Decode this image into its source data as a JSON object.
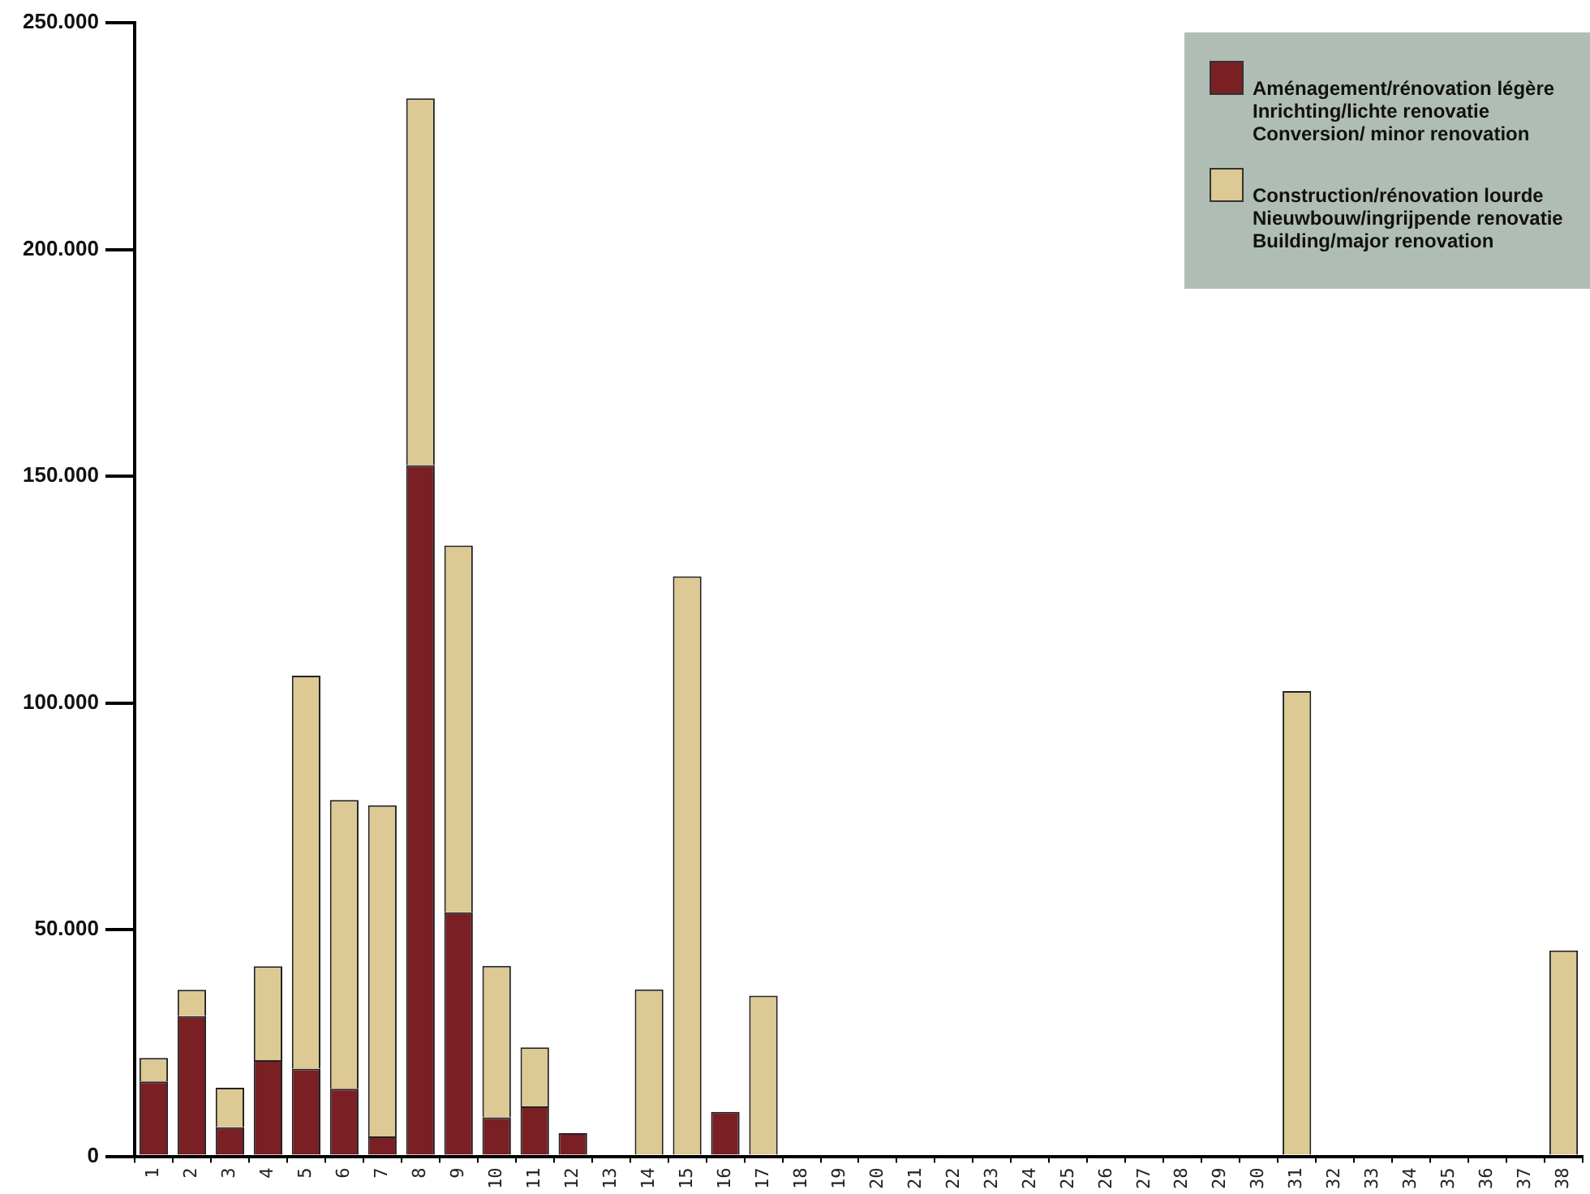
{
  "chart_data": {
    "type": "bar",
    "stacked": true,
    "categories": [
      "1",
      "2",
      "3",
      "4",
      "5",
      "6",
      "7",
      "8",
      "9",
      "10",
      "11",
      "12",
      "13",
      "14",
      "15",
      "16",
      "17",
      "18",
      "19",
      "20",
      "21",
      "22",
      "23",
      "24",
      "25",
      "26",
      "27",
      "28",
      "29",
      "30",
      "31",
      "32",
      "33",
      "34",
      "35",
      "36",
      "37",
      "38"
    ],
    "series": [
      {
        "name": "Aménagement/rénovation légère\nInrichting/lichte renovatie\nConversion/ minor renovation",
        "color": "#7a1f24",
        "values": [
          16500,
          30900,
          6400,
          21200,
          19300,
          14900,
          4400,
          152400,
          53800,
          8600,
          11000,
          5100,
          0,
          0,
          0,
          9800,
          0,
          0,
          0,
          0,
          0,
          0,
          0,
          0,
          0,
          0,
          0,
          0,
          0,
          0,
          0,
          0,
          0,
          0,
          0,
          0,
          0,
          0
        ]
      },
      {
        "name": "Construction/rénovation lourde\nNieuwbouw/ingrijpende renovatie\nBuilding/major renovation",
        "color": "#dcc993",
        "values": [
          5200,
          5800,
          8700,
          20700,
          86700,
          63700,
          73000,
          80900,
          80900,
          33400,
          13000,
          0,
          0,
          36800,
          127900,
          0,
          35400,
          0,
          0,
          0,
          0,
          0,
          0,
          0,
          0,
          0,
          0,
          0,
          0,
          0,
          102600,
          0,
          0,
          0,
          0,
          0,
          0,
          45400
        ]
      }
    ],
    "ylim": [
      0,
      250000
    ],
    "yticks": [
      {
        "value": 0,
        "label": "0"
      },
      {
        "value": 50000,
        "label": "50.000"
      },
      {
        "value": 100000,
        "label": "100.000"
      },
      {
        "value": 150000,
        "label": "150.000"
      },
      {
        "value": 200000,
        "label": "200.000"
      },
      {
        "value": 250000,
        "label": "250.000"
      }
    ],
    "grid": false,
    "legend": "top right"
  }
}
